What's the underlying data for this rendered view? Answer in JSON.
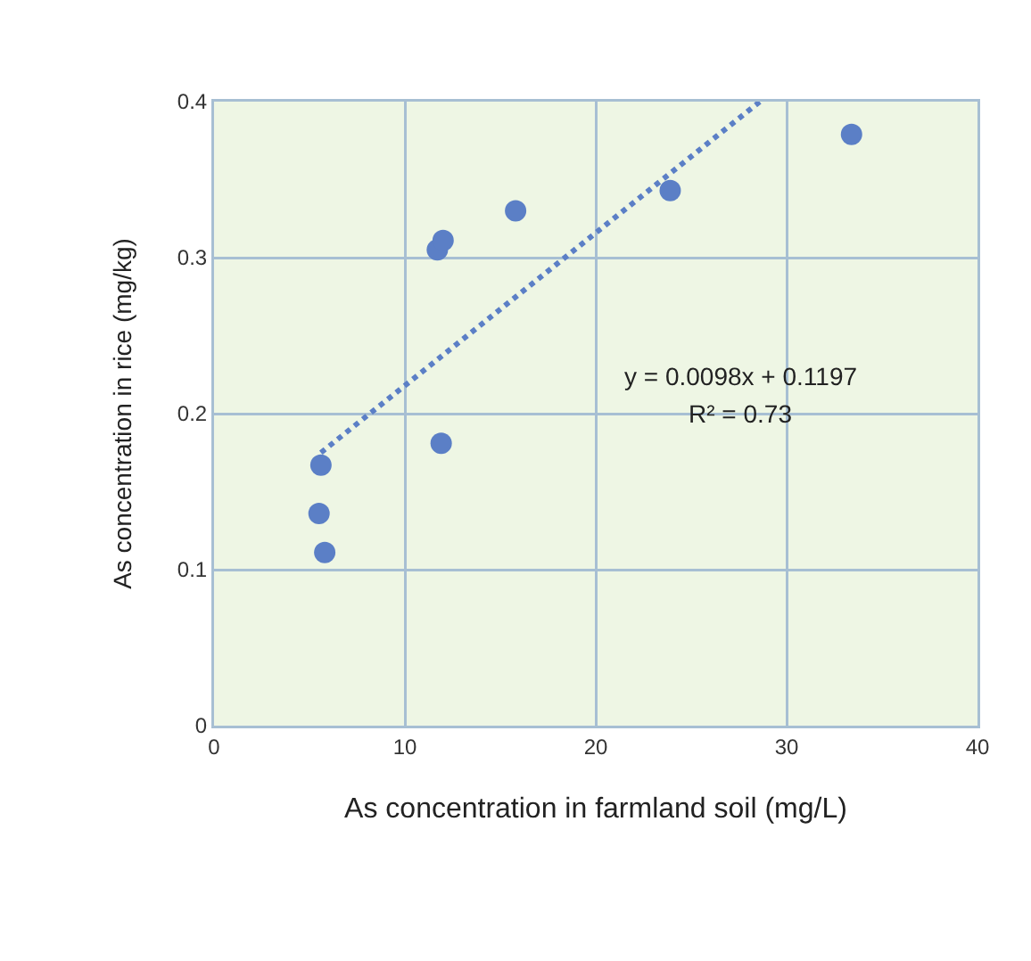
{
  "chart_data": {
    "type": "scatter",
    "xlabel": "As concentration in farmland soil (mg/L)",
    "ylabel": "As concentration in rice (mg/kg)",
    "xlim": [
      0,
      40
    ],
    "xticks": [
      0,
      10,
      20,
      30,
      40
    ],
    "ylim": [
      0,
      0.4
    ],
    "yticks": [
      0,
      0.1,
      0.2,
      0.3,
      0.4
    ],
    "grid": true,
    "marker": "circle",
    "series": [
      {
        "color": "#5b7fc6",
        "x": [
          5.6,
          5.5,
          5.8,
          11.9,
          11.7,
          12.0,
          15.8,
          23.9,
          33.4
        ],
        "values": [
          0.167,
          0.136,
          0.111,
          0.181,
          0.305,
          0.311,
          0.33,
          0.343,
          0.379
        ]
      },
      {
        "type": "line",
        "color": "#5b7fc6",
        "line_style": "dotted",
        "marker": "none",
        "x": [
          5.6,
          28.6
        ],
        "values": [
          0.175,
          0.4
        ]
      }
    ],
    "annotations": [
      "y = 0.0098x + 0.1197",
      "R² = 0.73"
    ]
  }
}
